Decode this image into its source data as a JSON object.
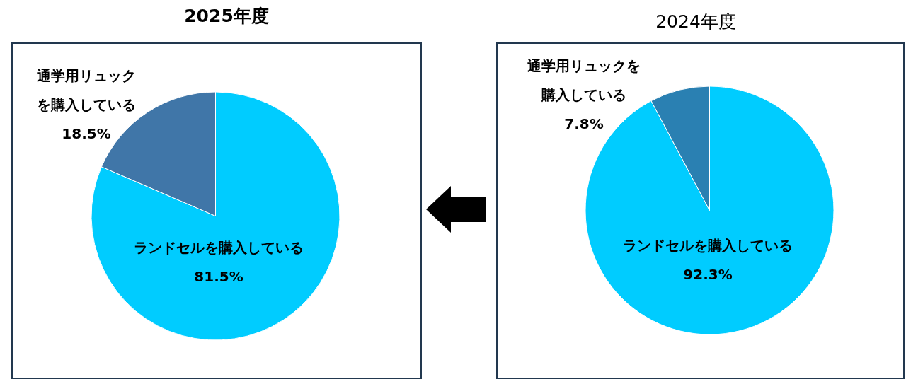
{
  "chart_data": [
    {
      "type": "pie",
      "title": "2025年度",
      "categories": [
        "ランドセルを購入している",
        "通学用リュックを購入している"
      ],
      "values": [
        81.5,
        18.5
      ],
      "colors": [
        "#00ccff",
        "#4076a8"
      ],
      "value_labels": [
        "81.5%",
        "18.5%"
      ]
    },
    {
      "type": "pie",
      "title": "2024年度",
      "categories": [
        "ランドセルを購入している",
        "通学用リュックを購入している"
      ],
      "values": [
        92.3,
        7.8
      ],
      "colors": [
        "#00ccff",
        "#2a80b2"
      ],
      "value_labels": [
        "92.3%",
        "7.8%"
      ]
    }
  ]
}
